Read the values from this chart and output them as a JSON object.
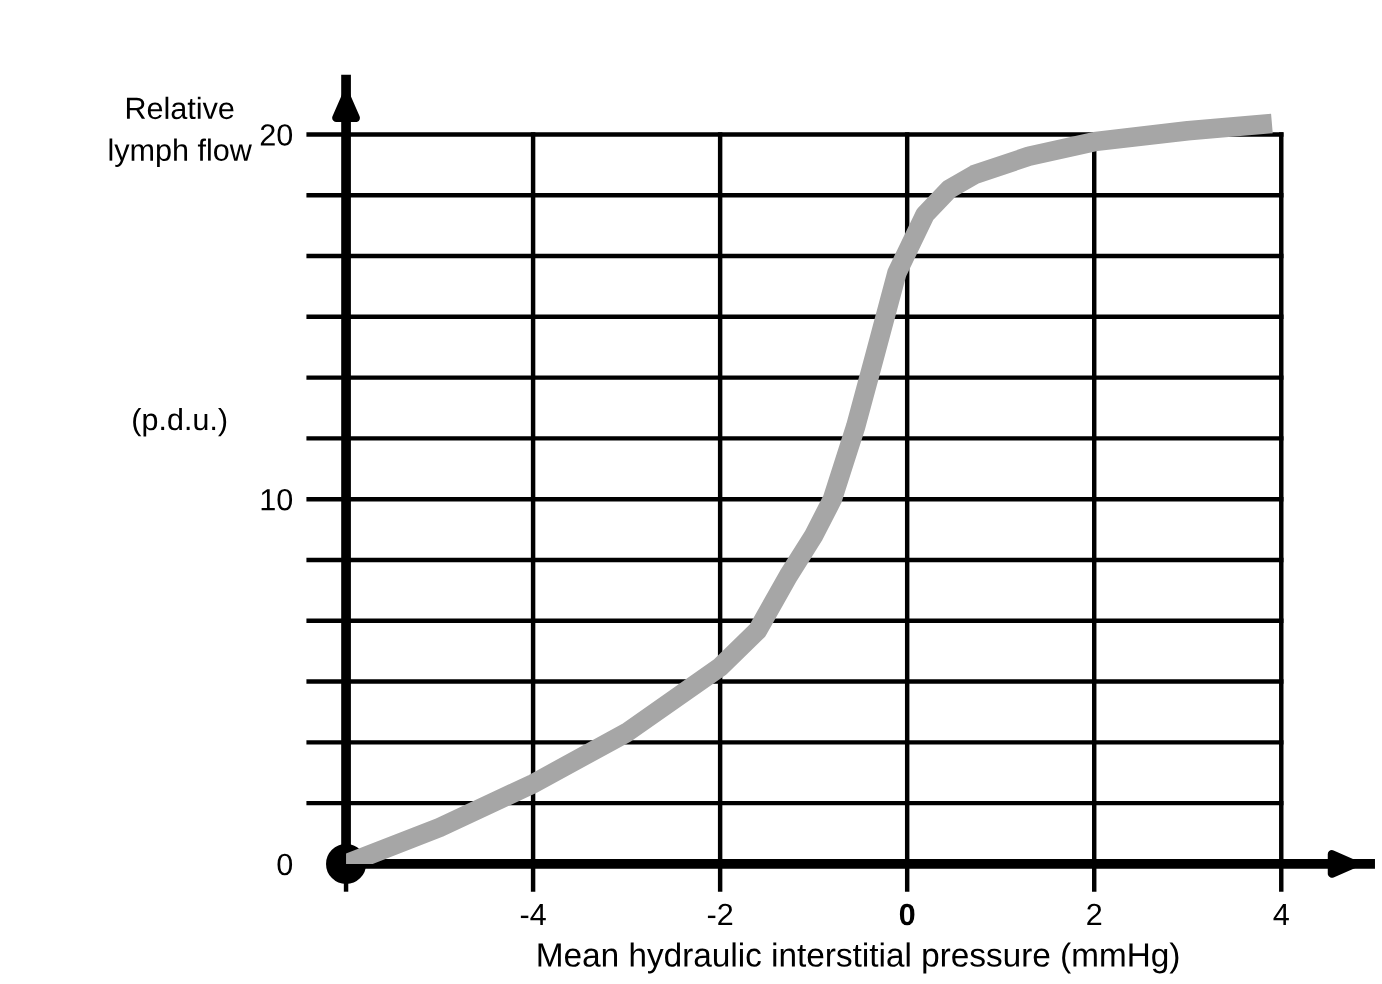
{
  "chart_data": {
    "type": "line",
    "ylabel": "Relative\nlymph flow",
    "xlabel": "Mean hydraulic interstitial pressure (mmHg)",
    "annotations": [
      "(p.d.u.)"
    ],
    "x": [
      -6,
      -5,
      -4,
      -3,
      -2,
      -1.6,
      -1.27,
      -1,
      -0.8,
      -0.55,
      -0.35,
      -0.11,
      0.19,
      0.45,
      0.72,
      1.3,
      2,
      3,
      3.9
    ],
    "series": [
      {
        "color": "#a6a6a6",
        "values": [
          0,
          1,
          2.2,
          3.6,
          5.4,
          6.4,
          7.9,
          9,
          10,
          12,
          13.9,
          16.2,
          17.8,
          18.5,
          18.9,
          19.4,
          19.8,
          20.1,
          20.3
        ]
      }
    ],
    "xlim": [
      -6,
      4.95
    ],
    "ylim": [
      0,
      21.5
    ],
    "xticks": [
      -4,
      -2,
      {
        "value": 0,
        "label": "0"
      },
      2,
      4
    ],
    "yticks": [
      0,
      {
        "value": 1.667,
        "label": null
      },
      {
        "value": 3.333,
        "label": null
      },
      {
        "value": 5,
        "label": null
      },
      {
        "value": 6.667,
        "label": null
      },
      {
        "value": 8.333,
        "label": null
      },
      10,
      {
        "value": 11.667,
        "label": null
      },
      {
        "value": 13.333,
        "label": null
      },
      {
        "value": 15,
        "label": null
      },
      {
        "value": 16.667,
        "label": null
      },
      {
        "value": 18.333,
        "label": null
      },
      20
    ],
    "grid": true,
    "marker": "none",
    "line_style": "solid"
  }
}
